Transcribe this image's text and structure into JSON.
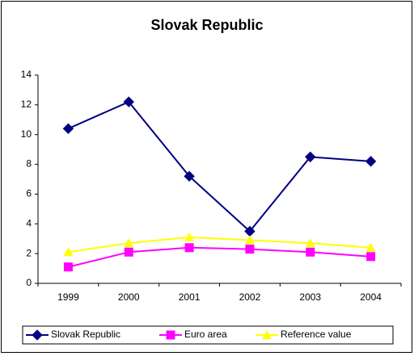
{
  "chart_data": {
    "type": "line",
    "title": "Slovak Republic",
    "categories": [
      "1999",
      "2000",
      "2001",
      "2002",
      "2003",
      "2004"
    ],
    "series": [
      {
        "name": "Slovak Republic",
        "color": "#000080",
        "marker": "diamond",
        "values": [
          10.4,
          12.2,
          7.2,
          3.5,
          8.5,
          8.2
        ]
      },
      {
        "name": "Euro area",
        "color": "#ff00ff",
        "marker": "square",
        "values": [
          1.1,
          2.1,
          2.4,
          2.3,
          2.1,
          1.8
        ]
      },
      {
        "name": "Reference value",
        "color": "#ffff00",
        "marker": "triangle",
        "values": [
          2.1,
          2.7,
          3.1,
          2.9,
          2.7,
          2.4
        ]
      }
    ],
    "ylim": [
      0,
      14
    ],
    "yticks": [
      0,
      2,
      4,
      6,
      8,
      10,
      12,
      14
    ],
    "legend": "bottom"
  }
}
